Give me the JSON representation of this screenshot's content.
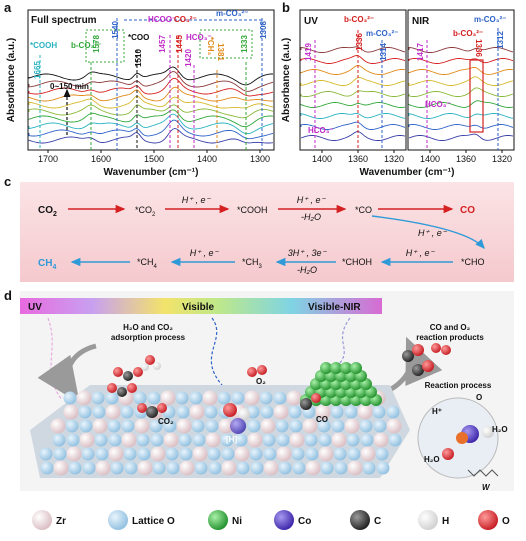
{
  "panel_a": {
    "label": "a",
    "title": "Full spectrum",
    "time_label": "0~150 min",
    "ylabel": "Absorbance (a.u.)",
    "xlabel": "Wavenumber (cm⁻¹)",
    "xticks": [
      "1700",
      "1600",
      "1500",
      "1400",
      "1300"
    ],
    "annotations": {
      "cooh": "*COOH",
      "cooh_wn": "1665",
      "bco3": "b-CO₃²⁻",
      "bco3_wn": "1578",
      "n1540": "1540",
      "coo": "*COO",
      "coo_wn": "1510",
      "hcoo": "HCOO⁻",
      "hcoo_wn": "1457",
      "co3": "CO₃²⁻",
      "co3_wn": "1445",
      "hco3": "HCO₃⁻",
      "hco3_wn": "1420",
      "ch3": "*CH₃",
      "ch3_wn": "1381",
      "n1333": "1333",
      "mco3": "m-CO₃²⁻",
      "n1308": "1308"
    }
  },
  "panel_b": {
    "label": "b",
    "uv_title": "UV",
    "nir_title": "NIR",
    "ylabel": "Absorbance (a.u.)",
    "xlabel": "Wavenumber (cm⁻¹)",
    "xticks": [
      "1400",
      "1360",
      "1320"
    ],
    "uv_annotations": {
      "n1419": "1419",
      "bco3": "b-CO₃²⁻",
      "n1336": "1336",
      "mco3": "m-CO₃²⁻",
      "n1314": "1314",
      "hco3": "HCO₃⁻"
    },
    "nir_annotations": {
      "n1417": "1417",
      "mco3": "m-CO₃²⁻",
      "bco3": "b-CO₃²⁻",
      "n1336": "1336",
      "n1312": "1312",
      "hco3": "HCO₃⁻"
    }
  },
  "panel_c": {
    "label": "c",
    "co2": "CO",
    "co2_sub": "2",
    "ads_co2": "*CO",
    "ads_co2_sub": "2",
    "cooh": "*COOH",
    "co_ads": "*CO",
    "co_product": "CO",
    "cho": "*CHO",
    "choh": "*CHOH",
    "ch3": "*CH",
    "ch3_sub": "3",
    "ch4_ads": "*CH",
    "ch4_ads_sub": "4",
    "ch4": "CH",
    "ch4_sub": "4",
    "h_e": "H⁺ , e⁻",
    "minus_h2o": "-H₂O",
    "three_h": "3H⁺ , 3e⁻"
  },
  "panel_d": {
    "label": "d",
    "uv": "UV",
    "visible": "Visible",
    "vis_nir": "Visible-NIR",
    "adsorption_line1": "H₂O and CO₂",
    "adsorption_line2": "adsorption process",
    "products_line1": "CO and O₂",
    "products_line2": "reaction products",
    "reaction_process": "Reaction process",
    "co2": "CO₂",
    "o2": "O₂",
    "co": "CO",
    "h": "[H]",
    "h_plus": "H⁺",
    "o": "O",
    "h2o": "H₂O",
    "w": "W"
  },
  "legend": [
    {
      "label": "Zr",
      "color": "#e6cfd2"
    },
    {
      "label": "Lattice O",
      "color": "#a8d0ea"
    },
    {
      "label": "Ni",
      "color": "#2eae3a"
    },
    {
      "label": "Co",
      "color": "#5a3fc4"
    },
    {
      "label": "C",
      "color": "#3a3a3a"
    },
    {
      "label": "H",
      "color": "#f4f4f4"
    },
    {
      "label": "O",
      "color": "#e8343a"
    }
  ],
  "colors": {
    "red": "#d42020",
    "blue": "#2f63c8",
    "green": "#32a83a",
    "magenta": "#c02bc9",
    "orange": "#e08a1a",
    "cyan": "#2bb3c0"
  }
}
